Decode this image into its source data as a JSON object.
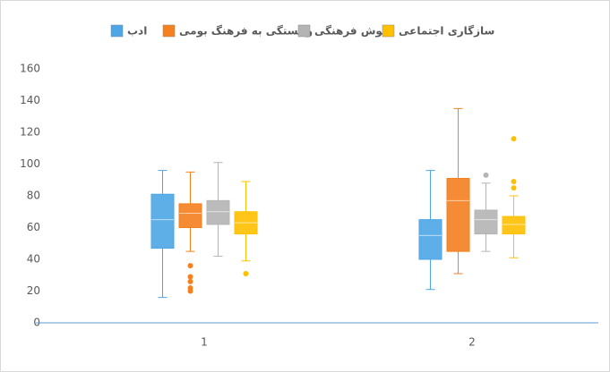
{
  "chart_data": {
    "type": "box",
    "categories": [
      "1",
      "2"
    ],
    "ylim": [
      0,
      160
    ],
    "yticks": [
      0,
      20,
      40,
      60,
      80,
      100,
      120,
      140,
      160
    ],
    "series": [
      {
        "name": "ادب",
        "color": "#4da6e6",
        "boxes": [
          {
            "min": 16,
            "q1": 47,
            "median": 65,
            "q3": 81,
            "max": 96,
            "outliers": []
          },
          {
            "min": 21,
            "q1": 40,
            "median": 55,
            "q3": 65,
            "max": 96,
            "outliers": []
          }
        ]
      },
      {
        "name": "وابستگی به فرهنگ بومی",
        "color": "#f4801f",
        "boxes": [
          {
            "min": 45,
            "q1": 60,
            "median": 69,
            "q3": 75,
            "max": 95,
            "outliers": [
              36,
              29,
              26,
              22,
              20
            ]
          },
          {
            "min": 31,
            "q1": 45,
            "median": 77,
            "q3": 91,
            "max": 135,
            "outliers": []
          }
        ]
      },
      {
        "name": "هوش فرهنگی",
        "color": "#b4b4b4",
        "boxes": [
          {
            "min": 42,
            "q1": 62,
            "median": 70,
            "q3": 77,
            "max": 101,
            "outliers": []
          },
          {
            "min": 45,
            "q1": 56,
            "median": 65,
            "q3": 71,
            "max": 88,
            "outliers": [
              93
            ]
          }
        ]
      },
      {
        "name": "سازگاری اجتماعی",
        "color": "#ffc000",
        "boxes": [
          {
            "min": 39,
            "q1": 56,
            "median": 63,
            "q3": 70,
            "max": 89,
            "outliers": [
              31
            ]
          },
          {
            "min": 41,
            "q1": 56,
            "median": 62,
            "q3": 67,
            "max": 80,
            "outliers": [
              116,
              89,
              85
            ]
          }
        ]
      }
    ]
  }
}
